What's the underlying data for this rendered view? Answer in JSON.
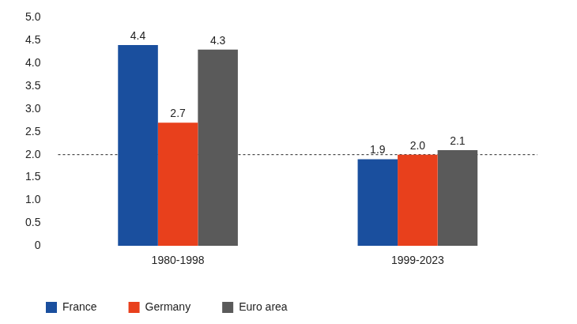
{
  "chart_data": {
    "type": "bar",
    "categories": [
      "1980-1998",
      "1999-2023"
    ],
    "series": [
      {
        "name": "France",
        "color": "#1a4f9e",
        "values": [
          4.4,
          1.9
        ],
        "value_labels": [
          "4.4",
          "1.9"
        ]
      },
      {
        "name": "Germany",
        "color": "#e8401c",
        "values": [
          2.7,
          2.0
        ],
        "value_labels": [
          "2.7",
          "2.0"
        ]
      },
      {
        "name": "Euro area",
        "color": "#5a5a5a",
        "values": [
          4.3,
          2.1
        ],
        "value_labels": [
          "4.3",
          "2.1"
        ]
      }
    ],
    "ylim": [
      0,
      5
    ],
    "yticks": [
      0,
      0.5,
      {
        "value": 1,
        "label": "1.0"
      },
      1.5,
      {
        "value": 2,
        "label": "2.0"
      },
      2.5,
      {
        "value": 3,
        "label": "3.0"
      },
      3.5,
      {
        "value": 4,
        "label": "4.0"
      },
      4.5,
      {
        "value": 5,
        "label": "5.0"
      }
    ],
    "reference_line": 2,
    "grid": false,
    "legend": "bottom-left",
    "data_labels": true
  }
}
